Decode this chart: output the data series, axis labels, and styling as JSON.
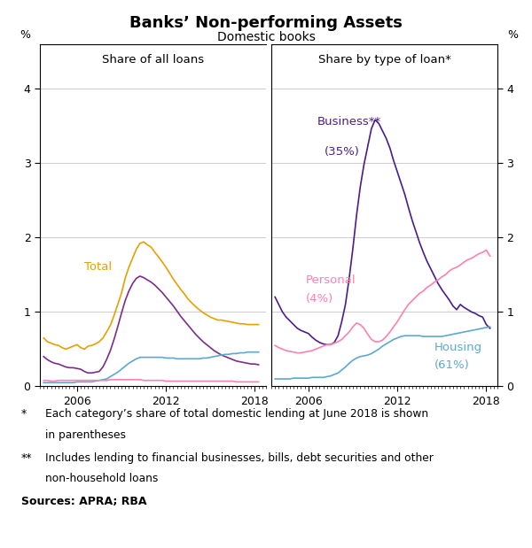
{
  "title": "Banks’ Non-performing Assets",
  "subtitle": "Domestic books",
  "left_panel_title": "Share of all loans",
  "right_panel_title": "Share by type of loan*",
  "ylabel": "%",
  "ylim": [
    0,
    4.6
  ],
  "yticks": [
    0,
    1,
    2,
    3,
    4
  ],
  "xticks": [
    2006,
    2012,
    2018
  ],
  "xlim": [
    2003.5,
    2018.75
  ],
  "colors": {
    "total": "#E8A000",
    "npa_share": "#7B2D8B",
    "housing_left": "#5BA8D5",
    "personal_left": "#FF80B0",
    "business": "#4B1D8B",
    "personal": "#FF80B0",
    "housing": "#5BA8D5"
  },
  "left_total_x": [
    2003.75,
    2004.0,
    2004.25,
    2004.5,
    2004.75,
    2005.0,
    2005.25,
    2005.5,
    2005.75,
    2006.0,
    2006.25,
    2006.5,
    2006.75,
    2007.0,
    2007.25,
    2007.5,
    2007.75,
    2008.0,
    2008.25,
    2008.5,
    2008.75,
    2009.0,
    2009.25,
    2009.5,
    2009.75,
    2010.0,
    2010.25,
    2010.5,
    2010.75,
    2011.0,
    2011.25,
    2011.5,
    2011.75,
    2012.0,
    2012.25,
    2012.5,
    2012.75,
    2013.0,
    2013.25,
    2013.5,
    2013.75,
    2014.0,
    2014.25,
    2014.5,
    2014.75,
    2015.0,
    2015.25,
    2015.5,
    2015.75,
    2016.0,
    2016.25,
    2016.5,
    2016.75,
    2017.0,
    2017.25,
    2017.5,
    2017.75,
    2018.0,
    2018.25
  ],
  "left_total_y": [
    0.65,
    0.6,
    0.58,
    0.56,
    0.55,
    0.52,
    0.5,
    0.52,
    0.54,
    0.56,
    0.52,
    0.5,
    0.54,
    0.55,
    0.57,
    0.6,
    0.65,
    0.73,
    0.82,
    0.95,
    1.1,
    1.25,
    1.45,
    1.6,
    1.72,
    1.84,
    1.92,
    1.94,
    1.9,
    1.87,
    1.8,
    1.74,
    1.67,
    1.6,
    1.52,
    1.44,
    1.37,
    1.3,
    1.24,
    1.17,
    1.12,
    1.07,
    1.03,
    0.99,
    0.96,
    0.93,
    0.91,
    0.89,
    0.89,
    0.88,
    0.87,
    0.86,
    0.85,
    0.84,
    0.84,
    0.83,
    0.83,
    0.83,
    0.83
  ],
  "left_npa_x": [
    2003.75,
    2004.0,
    2004.25,
    2004.5,
    2004.75,
    2005.0,
    2005.25,
    2005.5,
    2005.75,
    2006.0,
    2006.25,
    2006.5,
    2006.75,
    2007.0,
    2007.25,
    2007.5,
    2007.75,
    2008.0,
    2008.25,
    2008.5,
    2008.75,
    2009.0,
    2009.25,
    2009.5,
    2009.75,
    2010.0,
    2010.25,
    2010.5,
    2010.75,
    2011.0,
    2011.25,
    2011.5,
    2011.75,
    2012.0,
    2012.25,
    2012.5,
    2012.75,
    2013.0,
    2013.25,
    2013.5,
    2013.75,
    2014.0,
    2014.25,
    2014.5,
    2014.75,
    2015.0,
    2015.25,
    2015.5,
    2015.75,
    2016.0,
    2016.25,
    2016.5,
    2016.75,
    2017.0,
    2017.25,
    2017.5,
    2017.75,
    2018.0,
    2018.25
  ],
  "left_npa_y": [
    0.4,
    0.36,
    0.33,
    0.31,
    0.3,
    0.28,
    0.26,
    0.25,
    0.25,
    0.24,
    0.23,
    0.2,
    0.18,
    0.18,
    0.19,
    0.2,
    0.26,
    0.36,
    0.48,
    0.63,
    0.8,
    0.98,
    1.15,
    1.28,
    1.38,
    1.45,
    1.48,
    1.46,
    1.43,
    1.4,
    1.36,
    1.31,
    1.26,
    1.2,
    1.14,
    1.08,
    1.01,
    0.94,
    0.88,
    0.82,
    0.76,
    0.7,
    0.65,
    0.6,
    0.56,
    0.52,
    0.48,
    0.45,
    0.42,
    0.4,
    0.38,
    0.36,
    0.34,
    0.33,
    0.32,
    0.31,
    0.3,
    0.3,
    0.29
  ],
  "left_housing_x": [
    2003.75,
    2004.0,
    2004.25,
    2004.5,
    2004.75,
    2005.0,
    2005.25,
    2005.5,
    2005.75,
    2006.0,
    2006.25,
    2006.5,
    2006.75,
    2007.0,
    2007.25,
    2007.5,
    2007.75,
    2008.0,
    2008.25,
    2008.5,
    2008.75,
    2009.0,
    2009.25,
    2009.5,
    2009.75,
    2010.0,
    2010.25,
    2010.5,
    2010.75,
    2011.0,
    2011.25,
    2011.5,
    2011.75,
    2012.0,
    2012.25,
    2012.5,
    2012.75,
    2013.0,
    2013.25,
    2013.5,
    2013.75,
    2014.0,
    2014.25,
    2014.5,
    2014.75,
    2015.0,
    2015.25,
    2015.5,
    2015.75,
    2016.0,
    2016.25,
    2016.5,
    2016.75,
    2017.0,
    2017.25,
    2017.5,
    2017.75,
    2018.0,
    2018.25
  ],
  "left_housing_y": [
    0.05,
    0.05,
    0.05,
    0.05,
    0.05,
    0.05,
    0.05,
    0.05,
    0.05,
    0.06,
    0.06,
    0.06,
    0.06,
    0.06,
    0.07,
    0.08,
    0.09,
    0.1,
    0.13,
    0.16,
    0.19,
    0.23,
    0.27,
    0.31,
    0.34,
    0.37,
    0.39,
    0.39,
    0.39,
    0.39,
    0.39,
    0.39,
    0.39,
    0.38,
    0.38,
    0.38,
    0.37,
    0.37,
    0.37,
    0.37,
    0.37,
    0.37,
    0.37,
    0.38,
    0.38,
    0.39,
    0.4,
    0.41,
    0.42,
    0.43,
    0.43,
    0.44,
    0.44,
    0.45,
    0.45,
    0.46,
    0.46,
    0.46,
    0.46
  ],
  "left_personal_x": [
    2003.75,
    2004.0,
    2004.25,
    2004.5,
    2004.75,
    2005.0,
    2005.25,
    2005.5,
    2005.75,
    2006.0,
    2006.25,
    2006.5,
    2006.75,
    2007.0,
    2007.25,
    2007.5,
    2007.75,
    2008.0,
    2008.25,
    2008.5,
    2008.75,
    2009.0,
    2009.25,
    2009.5,
    2009.75,
    2010.0,
    2010.25,
    2010.5,
    2010.75,
    2011.0,
    2011.25,
    2011.5,
    2011.75,
    2012.0,
    2012.25,
    2012.5,
    2012.75,
    2013.0,
    2013.25,
    2013.5,
    2013.75,
    2014.0,
    2014.25,
    2014.5,
    2014.75,
    2015.0,
    2015.25,
    2015.5,
    2015.75,
    2016.0,
    2016.25,
    2016.5,
    2016.75,
    2017.0,
    2017.25,
    2017.5,
    2017.75,
    2018.0,
    2018.25
  ],
  "left_personal_y": [
    0.08,
    0.08,
    0.07,
    0.07,
    0.08,
    0.08,
    0.08,
    0.08,
    0.08,
    0.08,
    0.08,
    0.08,
    0.08,
    0.08,
    0.08,
    0.08,
    0.08,
    0.08,
    0.09,
    0.09,
    0.09,
    0.09,
    0.09,
    0.09,
    0.09,
    0.09,
    0.09,
    0.08,
    0.08,
    0.08,
    0.08,
    0.08,
    0.08,
    0.07,
    0.07,
    0.07,
    0.07,
    0.07,
    0.07,
    0.07,
    0.07,
    0.07,
    0.07,
    0.07,
    0.07,
    0.07,
    0.07,
    0.07,
    0.07,
    0.07,
    0.07,
    0.07,
    0.06,
    0.06,
    0.06,
    0.06,
    0.06,
    0.06,
    0.06
  ],
  "right_business_x": [
    2003.75,
    2004.0,
    2004.25,
    2004.5,
    2004.75,
    2005.0,
    2005.25,
    2005.5,
    2005.75,
    2006.0,
    2006.25,
    2006.5,
    2006.75,
    2007.0,
    2007.25,
    2007.5,
    2007.75,
    2008.0,
    2008.25,
    2008.5,
    2008.75,
    2009.0,
    2009.25,
    2009.5,
    2009.75,
    2010.0,
    2010.25,
    2010.5,
    2010.75,
    2011.0,
    2011.25,
    2011.5,
    2011.75,
    2012.0,
    2012.25,
    2012.5,
    2012.75,
    2013.0,
    2013.25,
    2013.5,
    2013.75,
    2014.0,
    2014.25,
    2014.5,
    2014.75,
    2015.0,
    2015.25,
    2015.5,
    2015.75,
    2016.0,
    2016.25,
    2016.5,
    2016.75,
    2017.0,
    2017.25,
    2017.5,
    2017.75,
    2018.0,
    2018.25
  ],
  "right_business_y": [
    1.2,
    1.1,
    1.0,
    0.93,
    0.88,
    0.83,
    0.78,
    0.75,
    0.73,
    0.71,
    0.66,
    0.62,
    0.59,
    0.57,
    0.56,
    0.56,
    0.59,
    0.68,
    0.87,
    1.1,
    1.45,
    1.85,
    2.3,
    2.68,
    2.98,
    3.22,
    3.46,
    3.58,
    3.53,
    3.43,
    3.33,
    3.2,
    3.03,
    2.88,
    2.73,
    2.58,
    2.4,
    2.23,
    2.08,
    1.93,
    1.8,
    1.68,
    1.58,
    1.48,
    1.38,
    1.3,
    1.23,
    1.16,
    1.08,
    1.03,
    1.1,
    1.06,
    1.03,
    1.0,
    0.98,
    0.95,
    0.93,
    0.83,
    0.78
  ],
  "right_personal_x": [
    2003.75,
    2004.0,
    2004.25,
    2004.5,
    2004.75,
    2005.0,
    2005.25,
    2005.5,
    2005.75,
    2006.0,
    2006.25,
    2006.5,
    2006.75,
    2007.0,
    2007.25,
    2007.5,
    2007.75,
    2008.0,
    2008.25,
    2008.5,
    2008.75,
    2009.0,
    2009.25,
    2009.5,
    2009.75,
    2010.0,
    2010.25,
    2010.5,
    2010.75,
    2011.0,
    2011.25,
    2011.5,
    2011.75,
    2012.0,
    2012.25,
    2012.5,
    2012.75,
    2013.0,
    2013.25,
    2013.5,
    2013.75,
    2014.0,
    2014.25,
    2014.5,
    2014.75,
    2015.0,
    2015.25,
    2015.5,
    2015.75,
    2016.0,
    2016.25,
    2016.5,
    2016.75,
    2017.0,
    2017.25,
    2017.5,
    2017.75,
    2018.0,
    2018.25
  ],
  "right_personal_y": [
    0.55,
    0.52,
    0.5,
    0.48,
    0.47,
    0.46,
    0.45,
    0.45,
    0.46,
    0.47,
    0.48,
    0.5,
    0.52,
    0.54,
    0.56,
    0.56,
    0.58,
    0.6,
    0.63,
    0.68,
    0.73,
    0.8,
    0.85,
    0.83,
    0.78,
    0.7,
    0.63,
    0.6,
    0.6,
    0.62,
    0.67,
    0.73,
    0.8,
    0.87,
    0.95,
    1.03,
    1.1,
    1.15,
    1.2,
    1.25,
    1.28,
    1.33,
    1.36,
    1.4,
    1.43,
    1.47,
    1.5,
    1.55,
    1.58,
    1.6,
    1.63,
    1.67,
    1.7,
    1.72,
    1.75,
    1.78,
    1.8,
    1.83,
    1.75
  ],
  "right_housing_x": [
    2003.75,
    2004.0,
    2004.25,
    2004.5,
    2004.75,
    2005.0,
    2005.25,
    2005.5,
    2005.75,
    2006.0,
    2006.25,
    2006.5,
    2006.75,
    2007.0,
    2007.25,
    2007.5,
    2007.75,
    2008.0,
    2008.25,
    2008.5,
    2008.75,
    2009.0,
    2009.25,
    2009.5,
    2009.75,
    2010.0,
    2010.25,
    2010.5,
    2010.75,
    2011.0,
    2011.25,
    2011.5,
    2011.75,
    2012.0,
    2012.25,
    2012.5,
    2012.75,
    2013.0,
    2013.25,
    2013.5,
    2013.75,
    2014.0,
    2014.25,
    2014.5,
    2014.75,
    2015.0,
    2015.25,
    2015.5,
    2015.75,
    2016.0,
    2016.25,
    2016.5,
    2016.75,
    2017.0,
    2017.25,
    2017.5,
    2017.75,
    2018.0,
    2018.25
  ],
  "right_housing_y": [
    0.1,
    0.1,
    0.1,
    0.1,
    0.1,
    0.11,
    0.11,
    0.11,
    0.11,
    0.11,
    0.12,
    0.12,
    0.12,
    0.12,
    0.13,
    0.14,
    0.16,
    0.18,
    0.22,
    0.26,
    0.31,
    0.35,
    0.38,
    0.4,
    0.41,
    0.42,
    0.44,
    0.47,
    0.5,
    0.54,
    0.57,
    0.6,
    0.63,
    0.65,
    0.67,
    0.68,
    0.68,
    0.68,
    0.68,
    0.68,
    0.67,
    0.67,
    0.67,
    0.67,
    0.67,
    0.67,
    0.68,
    0.69,
    0.7,
    0.71,
    0.72,
    0.73,
    0.74,
    0.75,
    0.76,
    0.77,
    0.78,
    0.79,
    0.8
  ]
}
